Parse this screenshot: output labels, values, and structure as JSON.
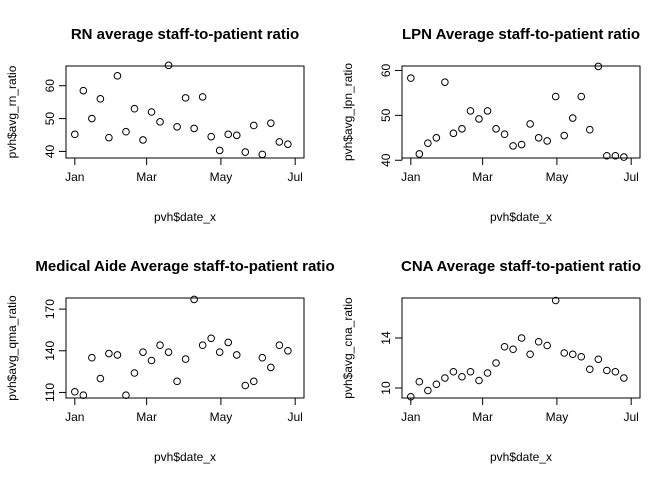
{
  "chart_data": [
    {
      "type": "scatter",
      "title": "RN average staff-to-patient ratio",
      "xlabel": "pvh$date_x",
      "ylabel": "pvh$avg_rn_ratio",
      "x_ticks": [
        "Jan",
        "Mar",
        "May",
        "Jul"
      ],
      "y_ticks": [
        40,
        50,
        60
      ],
      "xlim": [
        "Jan",
        "Jul"
      ],
      "ylim": [
        38,
        66
      ],
      "grid": false,
      "legend": "none",
      "x": [
        "2021-01-01",
        "2021-01-08",
        "2021-01-15",
        "2021-01-22",
        "2021-01-29",
        "2021-02-05",
        "2021-02-12",
        "2021-02-19",
        "2021-02-26",
        "2021-03-05",
        "2021-03-12",
        "2021-03-19",
        "2021-03-26",
        "2021-04-02",
        "2021-04-09",
        "2021-04-16",
        "2021-04-23",
        "2021-04-30",
        "2021-05-07",
        "2021-05-14",
        "2021-05-21",
        "2021-05-28",
        "2021-06-04",
        "2021-06-11",
        "2021-06-18",
        "2021-06-25"
      ],
      "y": [
        45.2,
        58.5,
        50.0,
        56.0,
        44.2,
        63.0,
        46.0,
        53.0,
        43.5,
        52.0,
        49.0,
        66.2,
        47.5,
        56.3,
        47.0,
        56.6,
        44.5,
        40.3,
        45.2,
        44.9,
        39.8,
        47.9,
        39.1,
        48.6,
        42.9,
        42.2
      ]
    },
    {
      "type": "scatter",
      "title": "LPN Average staff-to-patient ratio",
      "xlabel": "pvh$date_x",
      "ylabel": "pvh$avg_lpn_ratio",
      "x_ticks": [
        "Jan",
        "Mar",
        "May",
        "Jul"
      ],
      "y_ticks": [
        40,
        50,
        60
      ],
      "xlim": [
        "Jan",
        "Jul"
      ],
      "ylim": [
        40.5,
        61
      ],
      "grid": false,
      "legend": "none",
      "x": [
        "2021-01-01",
        "2021-01-08",
        "2021-01-15",
        "2021-01-22",
        "2021-01-29",
        "2021-02-05",
        "2021-02-12",
        "2021-02-19",
        "2021-02-26",
        "2021-03-05",
        "2021-03-12",
        "2021-03-19",
        "2021-03-26",
        "2021-04-02",
        "2021-04-09",
        "2021-04-16",
        "2021-04-23",
        "2021-04-30",
        "2021-05-07",
        "2021-05-14",
        "2021-05-21",
        "2021-05-28",
        "2021-06-04",
        "2021-06-11",
        "2021-06-18",
        "2021-06-25"
      ],
      "y": [
        58.3,
        41.4,
        43.8,
        45.0,
        57.4,
        46.0,
        47.0,
        51.0,
        49.2,
        51.0,
        47.0,
        45.8,
        43.2,
        43.5,
        48.1,
        45.0,
        44.3,
        54.2,
        45.5,
        49.4,
        54.2,
        46.8,
        60.9,
        41.0,
        41.0,
        40.7
      ]
    },
    {
      "type": "scatter",
      "title": "Medical Aide Average staff-to-patient ratio",
      "xlabel": "pvh$date_x",
      "ylabel": "pvh$avg_qma_ratio",
      "x_ticks": [
        "Jan",
        "Mar",
        "May",
        "Jul"
      ],
      "y_ticks": [
        110,
        140,
        170
      ],
      "xlim": [
        "Jan",
        "Jul"
      ],
      "ylim": [
        106,
        178
      ],
      "grid": false,
      "legend": "none",
      "x": [
        "2021-01-01",
        "2021-01-08",
        "2021-01-15",
        "2021-01-22",
        "2021-01-29",
        "2021-02-05",
        "2021-02-12",
        "2021-02-19",
        "2021-02-26",
        "2021-03-05",
        "2021-03-12",
        "2021-03-19",
        "2021-03-26",
        "2021-04-02",
        "2021-04-09",
        "2021-04-16",
        "2021-04-23",
        "2021-04-30",
        "2021-05-07",
        "2021-05-14",
        "2021-05-21",
        "2021-05-28",
        "2021-06-04",
        "2021-06-11",
        "2021-06-18",
        "2021-06-25"
      ],
      "y": [
        110.5,
        108.0,
        135.0,
        120.0,
        138.0,
        137.0,
        108.0,
        124.0,
        139.0,
        133.0,
        144.0,
        139.0,
        118.0,
        134.0,
        177.0,
        144.0,
        149.0,
        139.0,
        146.0,
        137.0,
        115.0,
        118.0,
        135.0,
        128.0,
        144.0,
        140.0
      ]
    },
    {
      "type": "scatter",
      "title": "CNA Average staff-to-patient ratio",
      "xlabel": "pvh$date_x",
      "ylabel": "pvh$avg_cna_ratio",
      "x_ticks": [
        "Jan",
        "Mar",
        "May",
        "Jul"
      ],
      "y_ticks": [
        10,
        14
      ],
      "xlim": [
        "Jan",
        "Jul"
      ],
      "ylim": [
        9.2,
        17.2
      ],
      "grid": false,
      "legend": "none",
      "x": [
        "2021-01-01",
        "2021-01-08",
        "2021-01-15",
        "2021-01-22",
        "2021-01-29",
        "2021-02-05",
        "2021-02-12",
        "2021-02-19",
        "2021-02-26",
        "2021-03-05",
        "2021-03-12",
        "2021-03-19",
        "2021-03-26",
        "2021-04-02",
        "2021-04-09",
        "2021-04-16",
        "2021-04-23",
        "2021-04-30",
        "2021-05-07",
        "2021-05-14",
        "2021-05-21",
        "2021-05-28",
        "2021-06-04",
        "2021-06-11",
        "2021-06-18",
        "2021-06-25"
      ],
      "y": [
        9.3,
        10.5,
        9.8,
        10.3,
        10.8,
        11.3,
        10.9,
        11.3,
        10.6,
        11.2,
        12.0,
        13.3,
        13.1,
        14.0,
        12.7,
        13.7,
        13.4,
        17.0,
        12.8,
        12.7,
        12.5,
        11.5,
        12.3,
        11.4,
        11.3,
        10.8
      ]
    }
  ]
}
